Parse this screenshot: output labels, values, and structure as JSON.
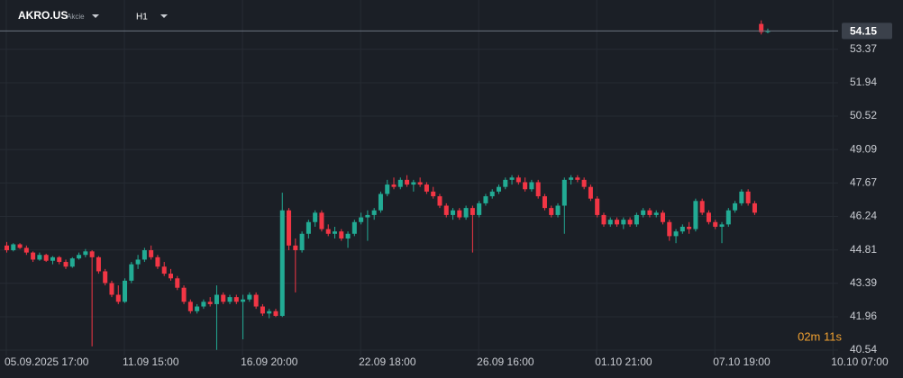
{
  "chart_data": {
    "type": "candlestick",
    "symbol": "AKRO.US",
    "asset_class": "Akcie",
    "timeframe": "H1",
    "countdown": "02m 11s",
    "last_price": 54.15,
    "colors": {
      "up": "#22ab94",
      "down": "#f23645"
    },
    "ylim": [
      40.31,
      55.47
    ],
    "yticks": [
      40.54,
      41.96,
      43.39,
      44.81,
      46.24,
      47.67,
      49.09,
      50.52,
      51.94,
      53.37
    ],
    "grid": true,
    "categories": [
      "05.09.2025 17:00",
      null,
      null,
      null,
      null,
      null,
      null,
      null,
      null,
      null,
      null,
      null,
      null,
      null,
      null,
      null,
      null,
      null,
      "11.09 15:00",
      null,
      null,
      null,
      null,
      null,
      null,
      null,
      null,
      null,
      null,
      null,
      null,
      null,
      null,
      null,
      null,
      null,
      "16.09 20:00",
      null,
      null,
      null,
      null,
      null,
      null,
      null,
      null,
      null,
      null,
      null,
      null,
      null,
      null,
      null,
      null,
      null,
      "22.09 18:00",
      null,
      null,
      null,
      null,
      null,
      null,
      null,
      null,
      null,
      null,
      null,
      null,
      null,
      null,
      null,
      null,
      null,
      "26.09 16:00",
      null,
      null,
      null,
      null,
      null,
      null,
      null,
      null,
      null,
      null,
      null,
      null,
      null,
      null,
      null,
      null,
      null,
      "01.10 21:00",
      null,
      null,
      null,
      null,
      null,
      null,
      null,
      null,
      null,
      null,
      null,
      null,
      null,
      null,
      null,
      null,
      null,
      "07.10 19:00",
      null,
      null,
      null,
      null,
      null,
      null,
      null,
      null,
      null,
      null,
      null,
      null,
      null,
      null,
      null,
      null,
      null,
      "10.10 07:00"
    ],
    "ohlc": [
      [
        45.0,
        45.15,
        44.7,
        44.8
      ],
      [
        44.8,
        45.1,
        44.75,
        45.05
      ],
      [
        45.05,
        45.1,
        44.85,
        44.9
      ],
      [
        44.9,
        45.0,
        44.6,
        44.7
      ],
      [
        44.7,
        44.75,
        44.3,
        44.4
      ],
      [
        44.4,
        44.7,
        44.35,
        44.6
      ],
      [
        44.6,
        44.65,
        44.3,
        44.35
      ],
      [
        44.35,
        44.55,
        44.2,
        44.5
      ],
      [
        44.5,
        44.55,
        44.2,
        44.3
      ],
      [
        44.3,
        44.4,
        44.0,
        44.1
      ],
      [
        44.1,
        44.5,
        44.05,
        44.45
      ],
      [
        44.45,
        44.7,
        44.4,
        44.6
      ],
      [
        44.6,
        44.85,
        44.5,
        44.75
      ],
      [
        44.75,
        44.8,
        40.7,
        44.5
      ],
      [
        44.5,
        44.55,
        43.8,
        43.9
      ],
      [
        43.9,
        44.0,
        43.3,
        43.4
      ],
      [
        43.4,
        43.5,
        42.8,
        42.9
      ],
      [
        42.9,
        43.3,
        42.5,
        42.6
      ],
      [
        42.6,
        43.6,
        42.55,
        43.5
      ],
      [
        43.5,
        44.3,
        43.4,
        44.2
      ],
      [
        44.2,
        44.6,
        44.0,
        44.4
      ],
      [
        44.4,
        44.9,
        44.3,
        44.8
      ],
      [
        44.8,
        45.0,
        44.4,
        44.5
      ],
      [
        44.5,
        44.6,
        44.0,
        44.1
      ],
      [
        44.1,
        44.3,
        43.7,
        43.8
      ],
      [
        43.8,
        44.0,
        43.5,
        43.6
      ],
      [
        43.6,
        43.7,
        43.1,
        43.2
      ],
      [
        43.2,
        43.3,
        42.5,
        42.6
      ],
      [
        42.6,
        42.7,
        42.1,
        42.2
      ],
      [
        42.2,
        42.5,
        42.1,
        42.4
      ],
      [
        42.4,
        42.7,
        42.3,
        42.6
      ],
      [
        42.6,
        42.8,
        42.4,
        42.5
      ],
      [
        42.5,
        43.3,
        40.55,
        42.9
      ],
      [
        42.9,
        43.0,
        42.5,
        42.6
      ],
      [
        42.6,
        42.9,
        42.5,
        42.8
      ],
      [
        42.8,
        42.9,
        42.5,
        42.6
      ],
      [
        42.6,
        42.9,
        41.0,
        42.7
      ],
      [
        42.7,
        43.0,
        42.6,
        42.9
      ],
      [
        42.9,
        43.0,
        42.3,
        42.4
      ],
      [
        42.4,
        42.5,
        42.0,
        42.1
      ],
      [
        42.1,
        42.3,
        41.9,
        42.2
      ],
      [
        42.2,
        42.3,
        41.95,
        42.0
      ],
      [
        42.0,
        47.25,
        41.95,
        46.5
      ],
      [
        46.5,
        46.6,
        44.8,
        45.0
      ],
      [
        45.0,
        45.3,
        43.0,
        44.8
      ],
      [
        44.8,
        45.6,
        44.7,
        45.5
      ],
      [
        45.5,
        46.1,
        45.3,
        46.0
      ],
      [
        46.0,
        46.5,
        45.8,
        46.4
      ],
      [
        46.4,
        46.5,
        45.6,
        45.7
      ],
      [
        45.7,
        45.9,
        45.4,
        45.5
      ],
      [
        45.5,
        45.8,
        45.3,
        45.6
      ],
      [
        45.6,
        45.7,
        45.2,
        45.3
      ],
      [
        45.3,
        45.6,
        44.9,
        45.5
      ],
      [
        45.5,
        46.1,
        45.4,
        46.0
      ],
      [
        46.0,
        46.4,
        45.9,
        46.2
      ],
      [
        46.2,
        46.5,
        45.2,
        46.3
      ],
      [
        46.3,
        46.6,
        46.1,
        46.5
      ],
      [
        46.5,
        47.3,
        46.4,
        47.2
      ],
      [
        47.2,
        47.8,
        47.1,
        47.6
      ],
      [
        47.6,
        47.9,
        47.4,
        47.5
      ],
      [
        47.5,
        47.9,
        47.4,
        47.8
      ],
      [
        47.8,
        48.0,
        47.5,
        47.6
      ],
      [
        47.6,
        47.8,
        47.3,
        47.7
      ],
      [
        47.7,
        47.9,
        47.5,
        47.6
      ],
      [
        47.6,
        47.7,
        47.2,
        47.3
      ],
      [
        47.3,
        47.5,
        47.0,
        47.1
      ],
      [
        47.1,
        47.2,
        46.6,
        46.7
      ],
      [
        46.7,
        46.8,
        46.2,
        46.3
      ],
      [
        46.3,
        46.6,
        46.1,
        46.5
      ],
      [
        46.5,
        46.6,
        46.1,
        46.2
      ],
      [
        46.2,
        46.7,
        46.1,
        46.6
      ],
      [
        46.6,
        46.7,
        44.7,
        46.3
      ],
      [
        46.3,
        46.9,
        46.2,
        46.8
      ],
      [
        46.8,
        47.2,
        46.7,
        47.1
      ],
      [
        47.1,
        47.4,
        47.0,
        47.3
      ],
      [
        47.3,
        47.6,
        47.2,
        47.5
      ],
      [
        47.5,
        47.9,
        47.4,
        47.8
      ],
      [
        47.8,
        48.0,
        47.6,
        47.9
      ],
      [
        47.9,
        48.0,
        47.6,
        47.7
      ],
      [
        47.7,
        47.9,
        47.3,
        47.4
      ],
      [
        47.4,
        47.8,
        47.3,
        47.7
      ],
      [
        47.7,
        47.8,
        47.0,
        47.1
      ],
      [
        47.1,
        47.2,
        46.5,
        46.6
      ],
      [
        46.6,
        46.7,
        46.2,
        46.3
      ],
      [
        46.3,
        46.8,
        46.2,
        46.7
      ],
      [
        46.7,
        47.9,
        45.5,
        47.8
      ],
      [
        47.8,
        48.0,
        47.6,
        47.9
      ],
      [
        47.9,
        48.0,
        47.7,
        47.8
      ],
      [
        47.8,
        47.9,
        47.4,
        47.5
      ],
      [
        47.5,
        47.6,
        46.9,
        47.0
      ],
      [
        47.0,
        47.1,
        46.2,
        46.3
      ],
      [
        46.3,
        46.4,
        45.8,
        45.9
      ],
      [
        45.9,
        46.2,
        45.8,
        46.1
      ],
      [
        46.1,
        46.2,
        45.8,
        45.9
      ],
      [
        45.9,
        46.2,
        45.7,
        46.1
      ],
      [
        46.1,
        46.2,
        45.8,
        45.9
      ],
      [
        45.9,
        46.4,
        45.8,
        46.3
      ],
      [
        46.3,
        46.6,
        46.2,
        46.5
      ],
      [
        46.5,
        46.6,
        46.2,
        46.3
      ],
      [
        46.3,
        46.5,
        46.2,
        46.4
      ],
      [
        46.4,
        46.5,
        45.9,
        46.0
      ],
      [
        46.0,
        46.1,
        45.2,
        45.4
      ],
      [
        45.4,
        45.7,
        45.1,
        45.6
      ],
      [
        45.6,
        45.9,
        45.5,
        45.8
      ],
      [
        45.8,
        46.0,
        45.5,
        45.7
      ],
      [
        45.7,
        47.0,
        45.6,
        46.9
      ],
      [
        46.9,
        47.0,
        46.3,
        46.4
      ],
      [
        46.4,
        46.5,
        45.9,
        46.0
      ],
      [
        46.0,
        46.1,
        45.7,
        45.8
      ],
      [
        45.8,
        46.0,
        45.1,
        45.9
      ],
      [
        45.9,
        46.6,
        45.8,
        46.5
      ],
      [
        46.5,
        46.9,
        46.4,
        46.8
      ],
      [
        46.8,
        47.4,
        46.7,
        47.3
      ],
      [
        47.3,
        47.4,
        46.7,
        46.8
      ],
      [
        46.8,
        46.9,
        46.3,
        46.4
      ],
      [
        54.45,
        54.6,
        54.0,
        54.1
      ],
      [
        54.1,
        54.25,
        54.05,
        54.15
      ],
      null,
      null,
      null,
      null,
      null,
      null,
      null,
      null,
      null,
      null
    ]
  }
}
